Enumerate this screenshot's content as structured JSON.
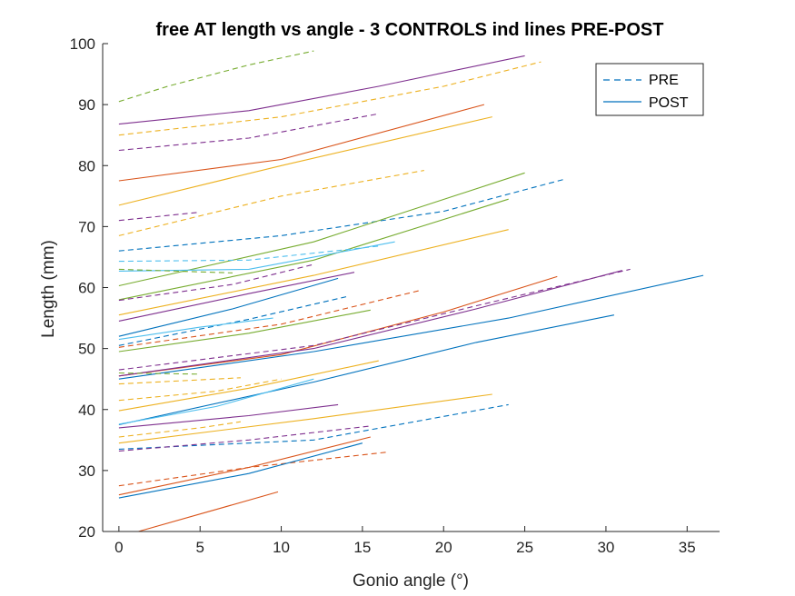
{
  "chart_data": {
    "type": "line",
    "title": "free AT length vs angle - 3 CONTROLS ind lines PRE-POST",
    "xlabel": "Gonio angle (°)",
    "ylabel": "Length (mm)",
    "xlim": [
      -1,
      37
    ],
    "ylim": [
      20,
      100
    ],
    "xticks": [
      0,
      5,
      10,
      15,
      20,
      25,
      30,
      35
    ],
    "yticks": [
      20,
      30,
      40,
      50,
      60,
      70,
      80,
      90,
      100
    ],
    "grid": false,
    "legend": {
      "placement": "top-right",
      "entries": [
        {
          "label": "PRE",
          "style": "dashed",
          "color": "#0072BD"
        },
        {
          "label": "POST",
          "style": "solid",
          "color": "#0072BD"
        }
      ]
    },
    "series": [
      {
        "style": "dashed",
        "color": "#77AC30",
        "points": [
          [
            0,
            90.5
          ],
          [
            3,
            93
          ],
          [
            8,
            96.5
          ],
          [
            12,
            98.8
          ]
        ]
      },
      {
        "style": "solid",
        "color": "#7E2F8E",
        "points": [
          [
            0,
            86.8
          ],
          [
            8,
            89
          ],
          [
            16,
            93
          ],
          [
            25,
            98
          ]
        ]
      },
      {
        "style": "dashed",
        "color": "#EDB120",
        "points": [
          [
            0,
            85
          ],
          [
            10,
            88
          ],
          [
            20,
            93
          ],
          [
            26,
            97
          ]
        ]
      },
      {
        "style": "dashed",
        "color": "#7E2F8E",
        "points": [
          [
            0,
            82.5
          ],
          [
            8,
            84.5
          ],
          [
            16,
            88.5
          ]
        ]
      },
      {
        "style": "solid",
        "color": "#D95319",
        "points": [
          [
            0,
            77.5
          ],
          [
            10,
            81
          ],
          [
            22.5,
            90
          ]
        ]
      },
      {
        "style": "solid",
        "color": "#EDB120",
        "points": [
          [
            0,
            73.5
          ],
          [
            10,
            80
          ],
          [
            23,
            88
          ]
        ]
      },
      {
        "style": "dashed",
        "color": "#EDB120",
        "points": [
          [
            0,
            68.5
          ],
          [
            10,
            75
          ],
          [
            18.8,
            79.2
          ]
        ]
      },
      {
        "style": "dashed",
        "color": "#0072BD",
        "points": [
          [
            0,
            66
          ],
          [
            10,
            68.5
          ],
          [
            20,
            72.5
          ],
          [
            27.5,
            77.8
          ]
        ]
      },
      {
        "style": "dashed",
        "color": "#7E2F8E",
        "points": [
          [
            0,
            71
          ],
          [
            4.8,
            72.3
          ]
        ]
      },
      {
        "style": "solid",
        "color": "#77AC30",
        "points": [
          [
            0,
            60.3
          ],
          [
            12,
            67.5
          ],
          [
            25,
            78.8
          ]
        ]
      },
      {
        "style": "solid",
        "color": "#77AC30",
        "points": [
          [
            0,
            58
          ],
          [
            12,
            64.5
          ],
          [
            24,
            74.5
          ]
        ]
      },
      {
        "style": "solid",
        "color": "#EDB120",
        "points": [
          [
            0,
            55.5
          ],
          [
            12,
            62
          ],
          [
            24,
            69.5
          ]
        ]
      },
      {
        "style": "dashed",
        "color": "#4DBEEE",
        "points": [
          [
            0,
            64.3
          ],
          [
            8,
            64.5
          ],
          [
            16,
            66.8
          ]
        ]
      },
      {
        "style": "solid",
        "color": "#4DBEEE",
        "points": [
          [
            0,
            62.7
          ],
          [
            8,
            63
          ],
          [
            17,
            67.5
          ]
        ]
      },
      {
        "style": "dashed",
        "color": "#77AC30",
        "points": [
          [
            0,
            63
          ],
          [
            7,
            62.4
          ]
        ]
      },
      {
        "style": "solid",
        "color": "#7E2F8E",
        "points": [
          [
            0,
            54.5
          ],
          [
            8,
            59
          ],
          [
            14.5,
            62.5
          ]
        ]
      },
      {
        "style": "dashed",
        "color": "#7E2F8E",
        "points": [
          [
            0,
            57.9
          ],
          [
            7,
            60.5
          ],
          [
            12,
            63.8
          ]
        ]
      },
      {
        "style": "solid",
        "color": "#0072BD",
        "points": [
          [
            0,
            52
          ],
          [
            7,
            56.5
          ],
          [
            13.5,
            61.5
          ]
        ]
      },
      {
        "style": "dashed",
        "color": "#0072BD",
        "points": [
          [
            0,
            50.5
          ],
          [
            8,
            54.8
          ],
          [
            14,
            58.5
          ]
        ]
      },
      {
        "style": "dashed",
        "color": "#D95319",
        "points": [
          [
            0,
            50.2
          ],
          [
            10,
            54
          ],
          [
            18.5,
            59.5
          ]
        ]
      },
      {
        "style": "solid",
        "color": "#4DBEEE",
        "points": [
          [
            0,
            51.5
          ],
          [
            5,
            53.5
          ],
          [
            9.5,
            55
          ]
        ]
      },
      {
        "style": "solid",
        "color": "#77AC30",
        "points": [
          [
            0,
            49.5
          ],
          [
            8,
            52.5
          ],
          [
            15.5,
            56.3
          ]
        ]
      },
      {
        "style": "solid",
        "color": "#D95319",
        "points": [
          [
            0,
            45.5
          ],
          [
            10,
            49
          ],
          [
            20,
            56
          ],
          [
            27,
            61.8
          ]
        ]
      },
      {
        "style": "dashed",
        "color": "#7E2F8E",
        "points": [
          [
            0,
            46.5
          ],
          [
            12,
            50.5
          ],
          [
            22,
            57
          ],
          [
            31.5,
            63
          ]
        ]
      },
      {
        "style": "solid",
        "color": "#7E2F8E",
        "points": [
          [
            0,
            45.5
          ],
          [
            12,
            50
          ],
          [
            22,
            56.5
          ],
          [
            31,
            62.8
          ]
        ]
      },
      {
        "style": "solid",
        "color": "#0072BD",
        "points": [
          [
            0,
            45
          ],
          [
            12,
            49.5
          ],
          [
            24,
            55
          ],
          [
            36,
            62
          ]
        ]
      },
      {
        "style": "solid",
        "color": "#0072BD",
        "points": [
          [
            0,
            37.5
          ],
          [
            12,
            44.5
          ],
          [
            22,
            51
          ],
          [
            30.5,
            55.5
          ]
        ]
      },
      {
        "style": "dashed",
        "color": "#77AC30",
        "points": [
          [
            0,
            46
          ],
          [
            5,
            45.8
          ]
        ]
      },
      {
        "style": "dashed",
        "color": "#EDB120",
        "points": [
          [
            0,
            44.2
          ],
          [
            7.5,
            45.2
          ]
        ]
      },
      {
        "style": "solid",
        "color": "#EDB120",
        "points": [
          [
            0,
            39.8
          ],
          [
            8,
            43.5
          ],
          [
            16,
            48
          ]
        ]
      },
      {
        "style": "dashed",
        "color": "#EDB120",
        "points": [
          [
            0,
            41.5
          ],
          [
            6,
            43
          ],
          [
            10,
            45
          ]
        ]
      },
      {
        "style": "solid",
        "color": "#4DBEEE",
        "points": [
          [
            0,
            37.6
          ],
          [
            6,
            40.5
          ],
          [
            12,
            45
          ]
        ]
      },
      {
        "style": "solid",
        "color": "#7E2F8E",
        "points": [
          [
            0,
            37
          ],
          [
            8,
            39
          ],
          [
            13.5,
            40.8
          ]
        ]
      },
      {
        "style": "solid",
        "color": "#EDB120",
        "points": [
          [
            0,
            34.5
          ],
          [
            12,
            38.5
          ],
          [
            23,
            42.5
          ]
        ]
      },
      {
        "style": "dashed",
        "color": "#0072BD",
        "points": [
          [
            0,
            33.5
          ],
          [
            12,
            35
          ],
          [
            24,
            40.8
          ]
        ]
      },
      {
        "style": "dashed",
        "color": "#7E2F8E",
        "points": [
          [
            0,
            33.2
          ],
          [
            8,
            35
          ],
          [
            15.5,
            37.3
          ]
        ]
      },
      {
        "style": "dashed",
        "color": "#EDB120",
        "points": [
          [
            0,
            35.5
          ],
          [
            5,
            37
          ],
          [
            7.5,
            38
          ]
        ]
      },
      {
        "style": "dashed",
        "color": "#D95319",
        "points": [
          [
            0,
            27.5
          ],
          [
            8,
            30.5
          ],
          [
            16.5,
            33
          ]
        ]
      },
      {
        "style": "solid",
        "color": "#D95319",
        "points": [
          [
            0,
            26
          ],
          [
            8,
            30.5
          ],
          [
            15.5,
            35.5
          ]
        ]
      },
      {
        "style": "solid",
        "color": "#0072BD",
        "points": [
          [
            0,
            25.5
          ],
          [
            8,
            29.5
          ],
          [
            15,
            34.5
          ]
        ]
      },
      {
        "style": "solid",
        "color": "#D95319",
        "points": [
          [
            1.2,
            20
          ],
          [
            9.8,
            26.5
          ]
        ]
      }
    ]
  }
}
